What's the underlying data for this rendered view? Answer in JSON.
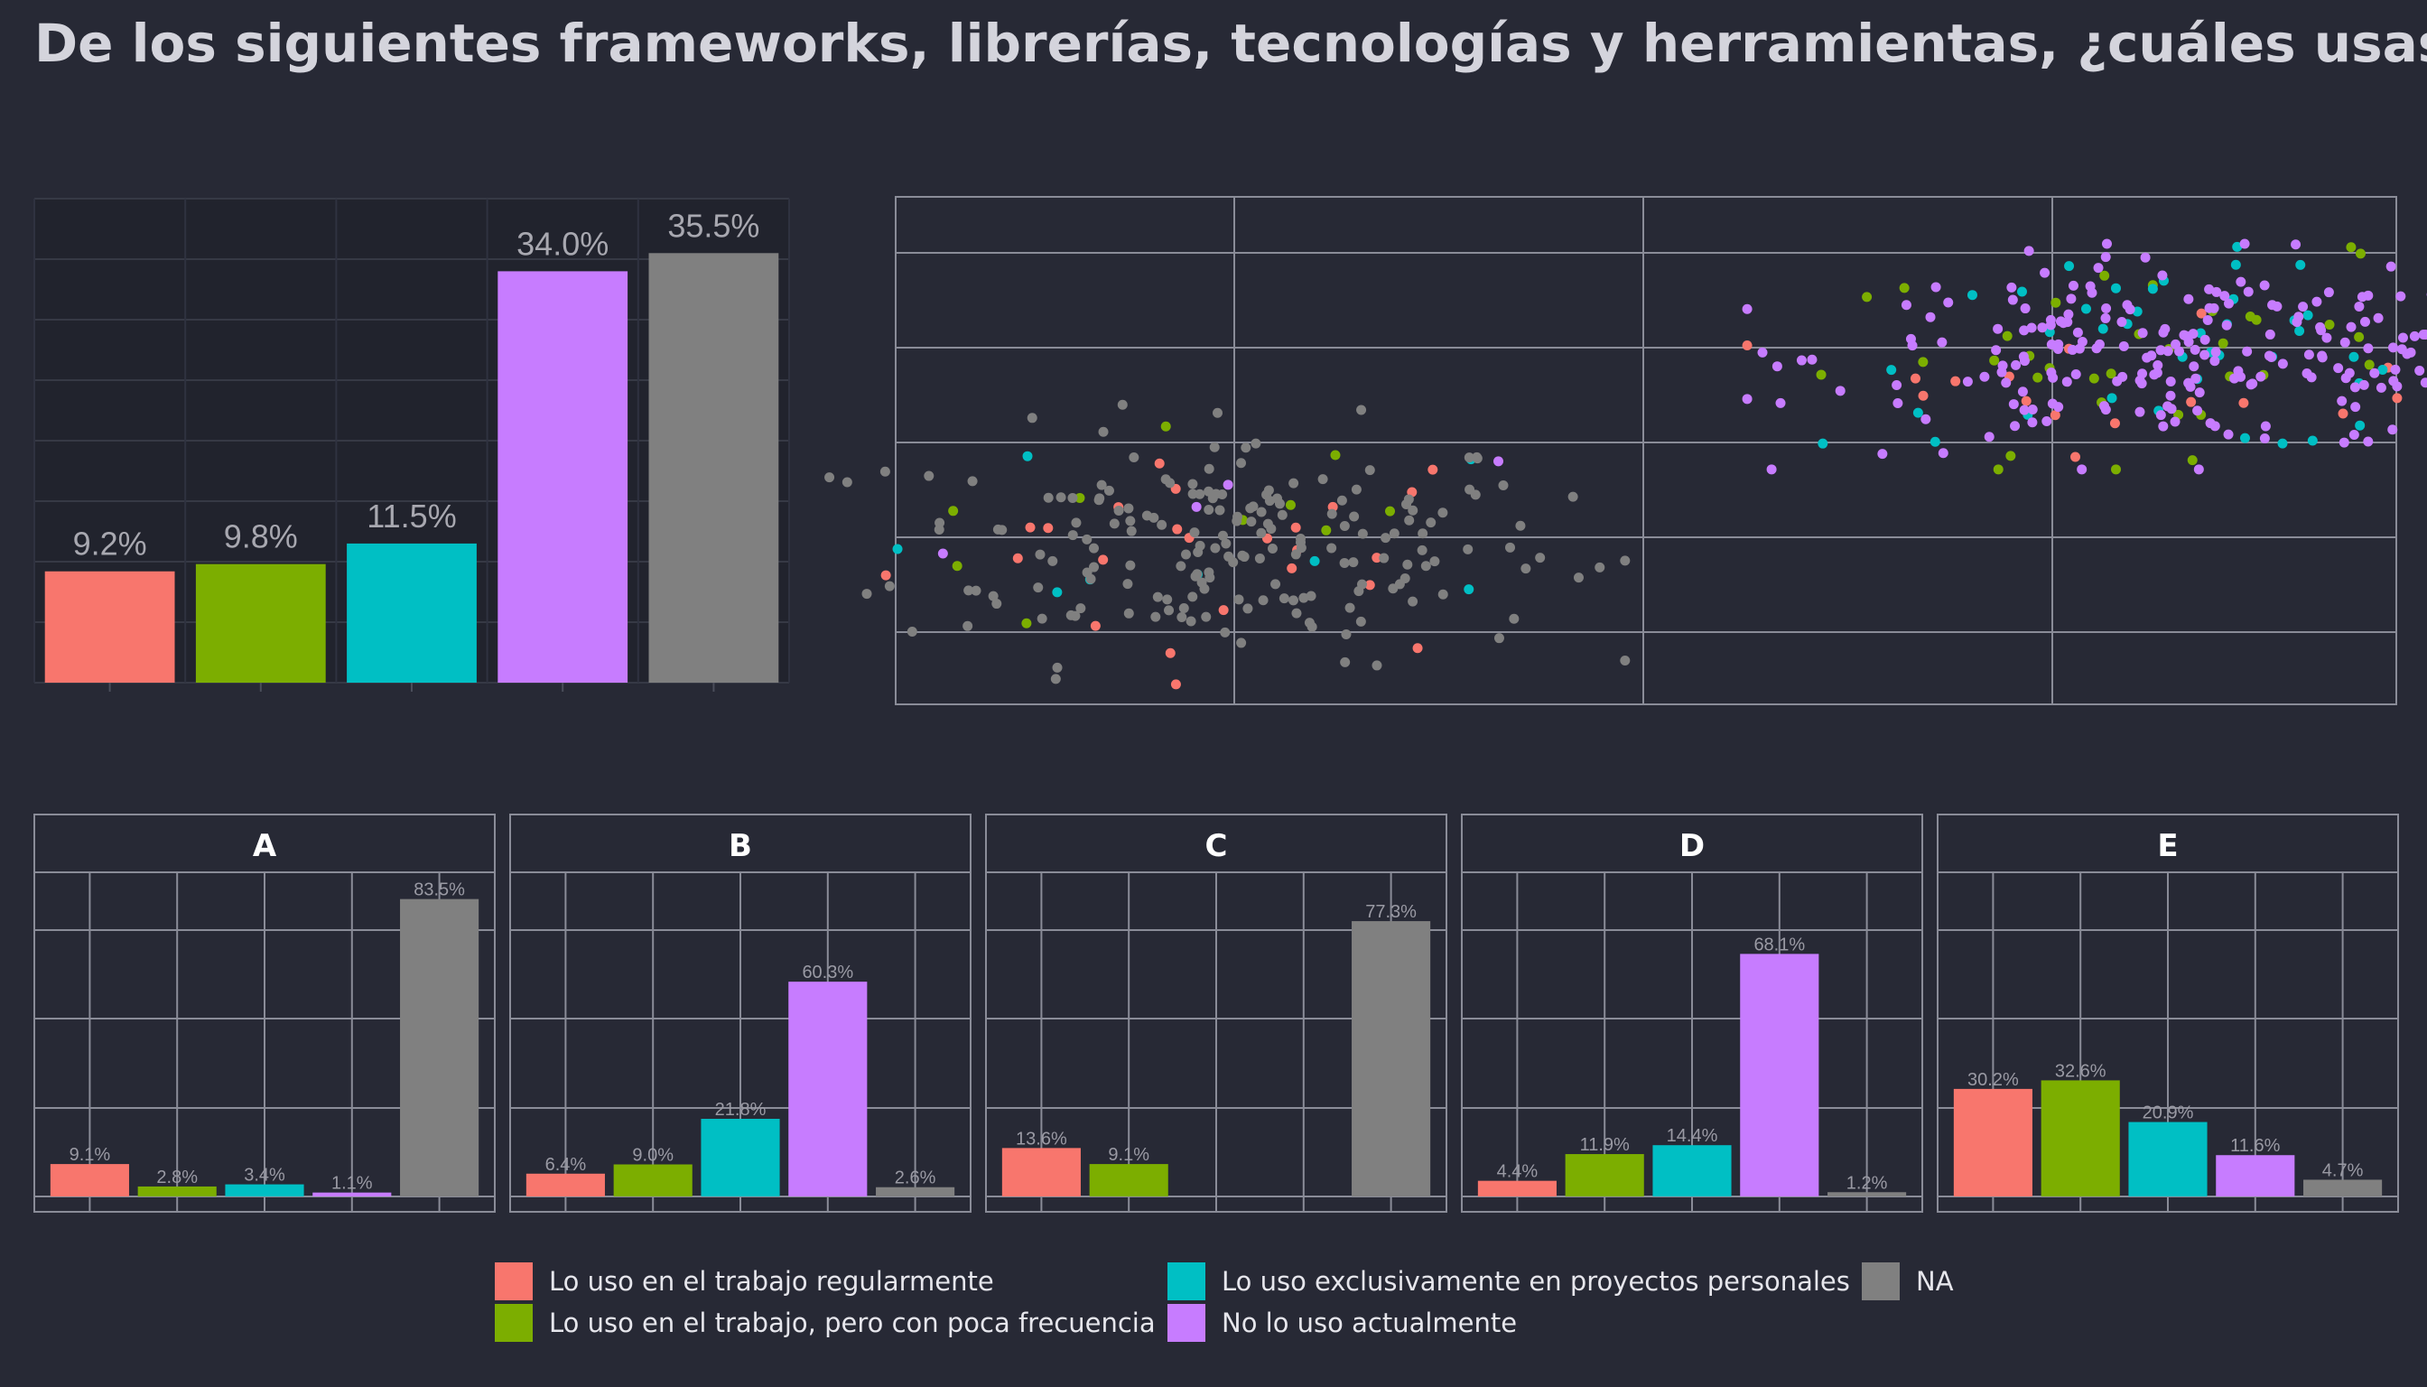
{
  "title": "De los siguientes frameworks, librerías, tecnologías y herramientas, ¿cuáles usas",
  "colors": {
    "background": "#272935",
    "categories": [
      "#F8766D",
      "#7CAE00",
      "#00BFC4",
      "#C77CFF",
      "#808080"
    ]
  },
  "legend": [
    {
      "label": "Lo uso en el trabajo regularmente",
      "color": "#F8766D"
    },
    {
      "label": "Lo uso en el trabajo, pero con poca frecuencia",
      "color": "#7CAE00"
    },
    {
      "label": "Lo uso exclusivamente en proyectos personales",
      "color": "#00BFC4"
    },
    {
      "label": "No lo uso actualmente",
      "color": "#C77CFF"
    },
    {
      "label": "NA",
      "color": "#808080"
    }
  ],
  "chart_data": [
    {
      "type": "bar",
      "id": "overall",
      "categories": [
        "Lo uso en el trabajo regularmente",
        "Lo uso en el trabajo, pero con poca frecuencia",
        "Lo uso exclusivamente en proyectos personales",
        "No lo uso actualmente",
        "NA"
      ],
      "values": [
        9.2,
        9.8,
        11.5,
        34.0,
        35.5
      ],
      "labels": [
        "9.2%",
        "9.8%",
        "11.5%",
        "34.0%",
        "35.5%"
      ],
      "ylim": [
        0,
        40
      ],
      "grid": true
    },
    {
      "type": "scatter",
      "id": "embedding",
      "groups": [
        "Lo uso en el trabajo regularmente",
        "Lo uso en el trabajo, pero con poca frecuencia",
        "Lo uso exclusivamente en proyectos personales",
        "No lo uso actualmente",
        "NA"
      ],
      "clusters": [
        {
          "center": [
            -2.9,
            -1.0
          ],
          "spread": [
            0.95,
            0.62
          ],
          "counts": [
            24,
            10,
            8,
            4,
            190
          ]
        },
        {
          "center": [
            2.6,
            1.0
          ],
          "spread": [
            1.05,
            0.5
          ],
          "counts": [
            18,
            38,
            42,
            220,
            0
          ]
        }
      ],
      "xlim": [
        -4.8,
        3.8
      ],
      "ylim": [
        -2.7,
        2.7
      ],
      "grid": true
    },
    {
      "type": "bar",
      "id": "facets",
      "categories": [
        "Lo uso en el trabajo regularmente",
        "Lo uso en el trabajo, pero con poca frecuencia",
        "Lo uso exclusivamente en proyectos personales",
        "No lo uso actualmente",
        "NA"
      ],
      "ylim": [
        0,
        90
      ],
      "panels": [
        {
          "name": "A",
          "values": [
            9.1,
            2.8,
            3.4,
            1.1,
            83.5
          ],
          "labels": [
            "9.1%",
            "2.8%",
            "3.4%",
            "1.1%",
            "83.5%"
          ]
        },
        {
          "name": "B",
          "values": [
            6.4,
            9.0,
            21.8,
            60.3,
            2.6
          ],
          "labels": [
            "6.4%",
            "9.0%",
            "21.8%",
            "60.3%",
            "2.6%"
          ]
        },
        {
          "name": "C",
          "values": [
            13.6,
            9.1,
            null,
            null,
            77.3
          ],
          "labels": [
            "13.6%",
            "9.1%",
            "",
            "",
            "77.3%"
          ]
        },
        {
          "name": "D",
          "values": [
            4.4,
            11.9,
            14.4,
            68.1,
            1.2
          ],
          "labels": [
            "4.4%",
            "11.9%",
            "14.4%",
            "68.1%",
            "1.2%"
          ]
        },
        {
          "name": "E",
          "values": [
            30.2,
            32.6,
            20.9,
            11.6,
            4.7
          ],
          "labels": [
            "30.2%",
            "32.6%",
            "20.9%",
            "11.6%",
            "4.7%"
          ]
        }
      ]
    }
  ]
}
